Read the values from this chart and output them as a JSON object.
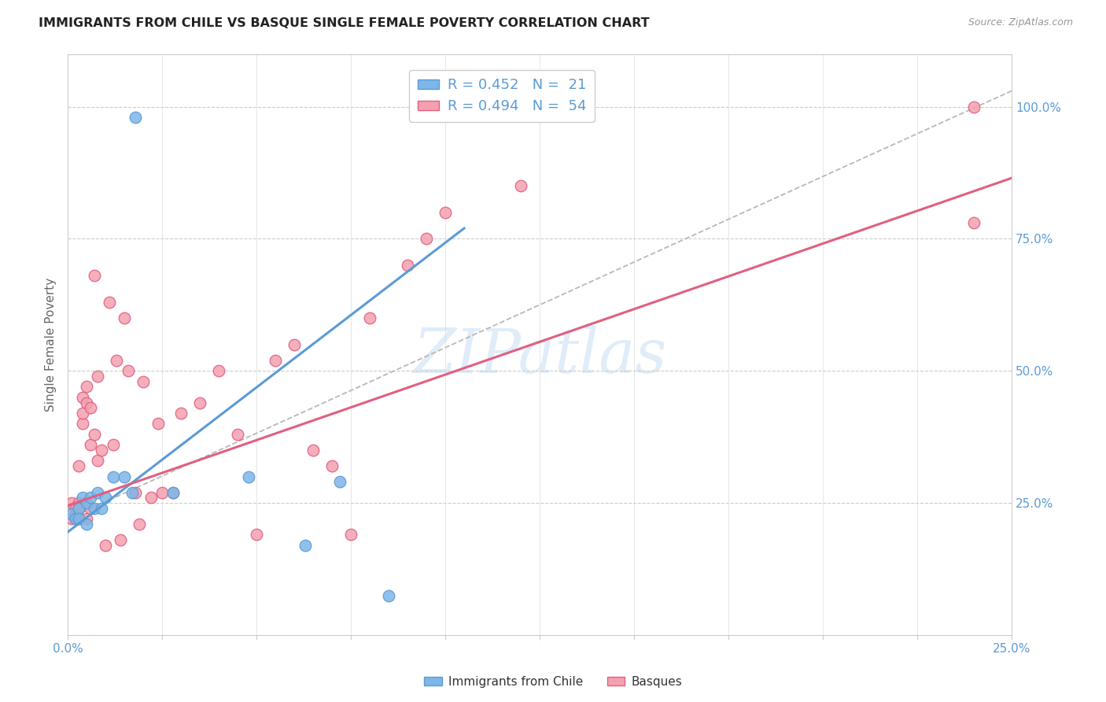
{
  "title": "IMMIGRANTS FROM CHILE VS BASQUE SINGLE FEMALE POVERTY CORRELATION CHART",
  "source": "Source: ZipAtlas.com",
  "ylabel": "Single Female Poverty",
  "ytick_labels": [
    "25.0%",
    "50.0%",
    "75.0%",
    "100.0%"
  ],
  "ytick_values": [
    0.25,
    0.5,
    0.75,
    1.0
  ],
  "color_chile": "#7eb6e8",
  "color_basque": "#f4a0b0",
  "color_line_chile": "#5b9bd5",
  "color_line_basque": "#e06080",
  "color_dashed": "#b8b8b8",
  "watermark": "ZIPatlas",
  "xmin": 0.0,
  "xmax": 0.25,
  "ymin": 0.0,
  "ymax": 1.1,
  "chile_line_x0": 0.0,
  "chile_line_y0": 0.195,
  "chile_line_x1": 0.105,
  "chile_line_y1": 0.77,
  "basque_line_x0": 0.0,
  "basque_line_y0": 0.245,
  "basque_line_x1": 0.25,
  "basque_line_y1": 0.865,
  "dashed_line_x0": 0.0,
  "dashed_line_y0": 0.22,
  "dashed_line_x1": 0.25,
  "dashed_line_y1": 1.03,
  "chile_x": [
    0.001,
    0.002,
    0.003,
    0.003,
    0.004,
    0.005,
    0.005,
    0.006,
    0.007,
    0.008,
    0.009,
    0.01,
    0.012,
    0.015,
    0.017,
    0.018,
    0.028,
    0.048,
    0.063,
    0.072,
    0.085
  ],
  "chile_y": [
    0.23,
    0.22,
    0.24,
    0.22,
    0.26,
    0.21,
    0.25,
    0.26,
    0.24,
    0.27,
    0.24,
    0.26,
    0.3,
    0.3,
    0.27,
    0.98,
    0.27,
    0.3,
    0.17,
    0.29,
    0.075
  ],
  "basque_x": [
    0.001,
    0.001,
    0.002,
    0.002,
    0.002,
    0.003,
    0.003,
    0.003,
    0.003,
    0.004,
    0.004,
    0.004,
    0.005,
    0.005,
    0.005,
    0.006,
    0.006,
    0.006,
    0.007,
    0.007,
    0.008,
    0.008,
    0.009,
    0.01,
    0.011,
    0.012,
    0.013,
    0.014,
    0.015,
    0.016,
    0.018,
    0.019,
    0.02,
    0.022,
    0.024,
    0.025,
    0.028,
    0.03,
    0.035,
    0.04,
    0.045,
    0.05,
    0.055,
    0.06,
    0.065,
    0.07,
    0.075,
    0.08,
    0.09,
    0.095,
    0.1,
    0.12,
    0.24,
    0.24
  ],
  "basque_y": [
    0.22,
    0.25,
    0.23,
    0.22,
    0.24,
    0.25,
    0.24,
    0.22,
    0.32,
    0.4,
    0.42,
    0.45,
    0.44,
    0.47,
    0.22,
    0.36,
    0.43,
    0.24,
    0.38,
    0.68,
    0.33,
    0.49,
    0.35,
    0.17,
    0.63,
    0.36,
    0.52,
    0.18,
    0.6,
    0.5,
    0.27,
    0.21,
    0.48,
    0.26,
    0.4,
    0.27,
    0.27,
    0.42,
    0.44,
    0.5,
    0.38,
    0.19,
    0.52,
    0.55,
    0.35,
    0.32,
    0.19,
    0.6,
    0.7,
    0.75,
    0.8,
    0.85,
    1.0,
    0.78
  ]
}
